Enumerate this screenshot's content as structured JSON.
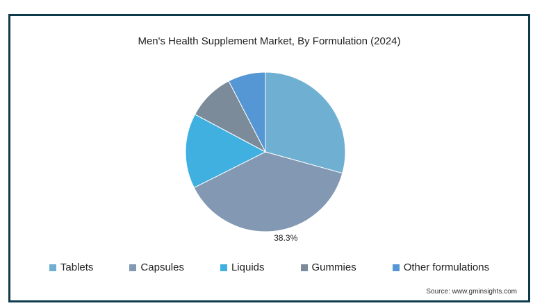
{
  "chart_data": {
    "type": "pie",
    "title": "Men's Health Supplement Market, By Formulation (2024)",
    "categories": [
      "Tablets",
      "Capsules",
      "Liquids",
      "Gummies",
      "Other formulations"
    ],
    "values": [
      29.3,
      38.3,
      15.2,
      9.6,
      7.6
    ],
    "colors": [
      "#6fb0d2",
      "#8399b3",
      "#3fb0e0",
      "#7b8b99",
      "#5596d4"
    ],
    "data_labels": [
      null,
      "38.3%",
      null,
      null,
      null
    ],
    "start_angle_deg": 0,
    "direction": "clockwise",
    "legend_position": "bottom"
  },
  "source": "Source: www.gminsights.com"
}
